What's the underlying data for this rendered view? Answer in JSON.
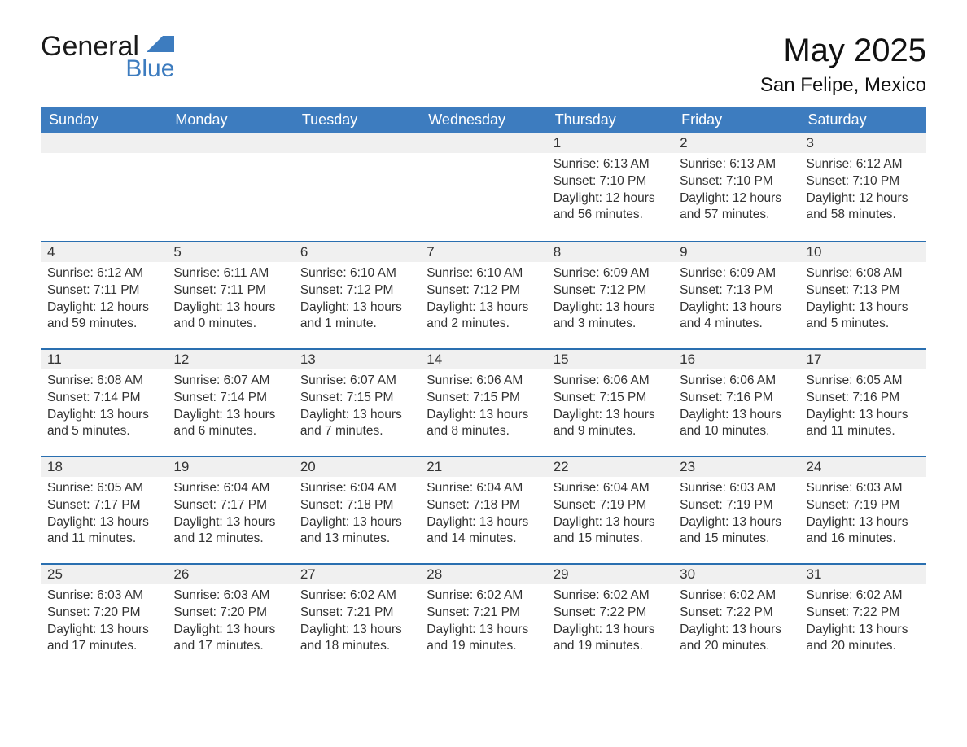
{
  "logo": {
    "line1": "General",
    "line2": "Blue"
  },
  "title": "May 2025",
  "location": "San Felipe, Mexico",
  "colors": {
    "header_blue": "#3d7cbf",
    "accent_blue": "#2a6fb0",
    "day_bg": "#f0f0f0",
    "text": "#222222",
    "background": "#ffffff"
  },
  "weekdays": [
    "Sunday",
    "Monday",
    "Tuesday",
    "Wednesday",
    "Thursday",
    "Friday",
    "Saturday"
  ],
  "weeks": [
    [
      null,
      null,
      null,
      null,
      {
        "n": "1",
        "sunrise": "Sunrise: 6:13 AM",
        "sunset": "Sunset: 7:10 PM",
        "daylight": "Daylight: 12 hours and 56 minutes."
      },
      {
        "n": "2",
        "sunrise": "Sunrise: 6:13 AM",
        "sunset": "Sunset: 7:10 PM",
        "daylight": "Daylight: 12 hours and 57 minutes."
      },
      {
        "n": "3",
        "sunrise": "Sunrise: 6:12 AM",
        "sunset": "Sunset: 7:10 PM",
        "daylight": "Daylight: 12 hours and 58 minutes."
      }
    ],
    [
      {
        "n": "4",
        "sunrise": "Sunrise: 6:12 AM",
        "sunset": "Sunset: 7:11 PM",
        "daylight": "Daylight: 12 hours and 59 minutes."
      },
      {
        "n": "5",
        "sunrise": "Sunrise: 6:11 AM",
        "sunset": "Sunset: 7:11 PM",
        "daylight": "Daylight: 13 hours and 0 minutes."
      },
      {
        "n": "6",
        "sunrise": "Sunrise: 6:10 AM",
        "sunset": "Sunset: 7:12 PM",
        "daylight": "Daylight: 13 hours and 1 minute."
      },
      {
        "n": "7",
        "sunrise": "Sunrise: 6:10 AM",
        "sunset": "Sunset: 7:12 PM",
        "daylight": "Daylight: 13 hours and 2 minutes."
      },
      {
        "n": "8",
        "sunrise": "Sunrise: 6:09 AM",
        "sunset": "Sunset: 7:12 PM",
        "daylight": "Daylight: 13 hours and 3 minutes."
      },
      {
        "n": "9",
        "sunrise": "Sunrise: 6:09 AM",
        "sunset": "Sunset: 7:13 PM",
        "daylight": "Daylight: 13 hours and 4 minutes."
      },
      {
        "n": "10",
        "sunrise": "Sunrise: 6:08 AM",
        "sunset": "Sunset: 7:13 PM",
        "daylight": "Daylight: 13 hours and 5 minutes."
      }
    ],
    [
      {
        "n": "11",
        "sunrise": "Sunrise: 6:08 AM",
        "sunset": "Sunset: 7:14 PM",
        "daylight": "Daylight: 13 hours and 5 minutes."
      },
      {
        "n": "12",
        "sunrise": "Sunrise: 6:07 AM",
        "sunset": "Sunset: 7:14 PM",
        "daylight": "Daylight: 13 hours and 6 minutes."
      },
      {
        "n": "13",
        "sunrise": "Sunrise: 6:07 AM",
        "sunset": "Sunset: 7:15 PM",
        "daylight": "Daylight: 13 hours and 7 minutes."
      },
      {
        "n": "14",
        "sunrise": "Sunrise: 6:06 AM",
        "sunset": "Sunset: 7:15 PM",
        "daylight": "Daylight: 13 hours and 8 minutes."
      },
      {
        "n": "15",
        "sunrise": "Sunrise: 6:06 AM",
        "sunset": "Sunset: 7:15 PM",
        "daylight": "Daylight: 13 hours and 9 minutes."
      },
      {
        "n": "16",
        "sunrise": "Sunrise: 6:06 AM",
        "sunset": "Sunset: 7:16 PM",
        "daylight": "Daylight: 13 hours and 10 minutes."
      },
      {
        "n": "17",
        "sunrise": "Sunrise: 6:05 AM",
        "sunset": "Sunset: 7:16 PM",
        "daylight": "Daylight: 13 hours and 11 minutes."
      }
    ],
    [
      {
        "n": "18",
        "sunrise": "Sunrise: 6:05 AM",
        "sunset": "Sunset: 7:17 PM",
        "daylight": "Daylight: 13 hours and 11 minutes."
      },
      {
        "n": "19",
        "sunrise": "Sunrise: 6:04 AM",
        "sunset": "Sunset: 7:17 PM",
        "daylight": "Daylight: 13 hours and 12 minutes."
      },
      {
        "n": "20",
        "sunrise": "Sunrise: 6:04 AM",
        "sunset": "Sunset: 7:18 PM",
        "daylight": "Daylight: 13 hours and 13 minutes."
      },
      {
        "n": "21",
        "sunrise": "Sunrise: 6:04 AM",
        "sunset": "Sunset: 7:18 PM",
        "daylight": "Daylight: 13 hours and 14 minutes."
      },
      {
        "n": "22",
        "sunrise": "Sunrise: 6:04 AM",
        "sunset": "Sunset: 7:19 PM",
        "daylight": "Daylight: 13 hours and 15 minutes."
      },
      {
        "n": "23",
        "sunrise": "Sunrise: 6:03 AM",
        "sunset": "Sunset: 7:19 PM",
        "daylight": "Daylight: 13 hours and 15 minutes."
      },
      {
        "n": "24",
        "sunrise": "Sunrise: 6:03 AM",
        "sunset": "Sunset: 7:19 PM",
        "daylight": "Daylight: 13 hours and 16 minutes."
      }
    ],
    [
      {
        "n": "25",
        "sunrise": "Sunrise: 6:03 AM",
        "sunset": "Sunset: 7:20 PM",
        "daylight": "Daylight: 13 hours and 17 minutes."
      },
      {
        "n": "26",
        "sunrise": "Sunrise: 6:03 AM",
        "sunset": "Sunset: 7:20 PM",
        "daylight": "Daylight: 13 hours and 17 minutes."
      },
      {
        "n": "27",
        "sunrise": "Sunrise: 6:02 AM",
        "sunset": "Sunset: 7:21 PM",
        "daylight": "Daylight: 13 hours and 18 minutes."
      },
      {
        "n": "28",
        "sunrise": "Sunrise: 6:02 AM",
        "sunset": "Sunset: 7:21 PM",
        "daylight": "Daylight: 13 hours and 19 minutes."
      },
      {
        "n": "29",
        "sunrise": "Sunrise: 6:02 AM",
        "sunset": "Sunset: 7:22 PM",
        "daylight": "Daylight: 13 hours and 19 minutes."
      },
      {
        "n": "30",
        "sunrise": "Sunrise: 6:02 AM",
        "sunset": "Sunset: 7:22 PM",
        "daylight": "Daylight: 13 hours and 20 minutes."
      },
      {
        "n": "31",
        "sunrise": "Sunrise: 6:02 AM",
        "sunset": "Sunset: 7:22 PM",
        "daylight": "Daylight: 13 hours and 20 minutes."
      }
    ]
  ]
}
